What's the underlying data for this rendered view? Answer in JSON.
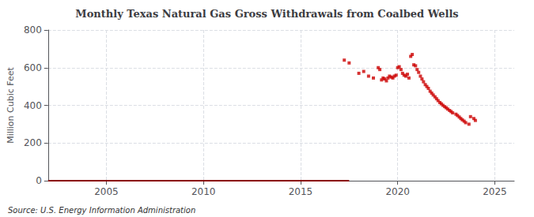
{
  "chart_data": {
    "type": "scatter",
    "title": "Monthly Texas Natural Gas Gross Withdrawals from Coalbed Wells",
    "ylabel": "Million Cubic Feet",
    "annotations": [
      "Source: U.S. Energy Information Administration"
    ],
    "xlim": [
      2002.0,
      2026.0
    ],
    "ylim": [
      0,
      800
    ],
    "xticks": [
      2005,
      2010,
      2015,
      2020,
      2025
    ],
    "yticks": [
      0,
      200,
      400,
      600,
      800
    ],
    "grid": true,
    "series": [
      {
        "type": "line",
        "color": "#8b0000",
        "line_style": "solid",
        "x": [
          2002.0,
          2017.5
        ],
        "values": [
          0,
          0
        ]
      },
      {
        "type": "scatter",
        "color": "#cc0000",
        "marker": "square",
        "x": [
          2017.25,
          2017.5,
          2018.0,
          2018.25,
          2018.5,
          2018.75,
          2019.0,
          2019.08,
          2019.17,
          2019.25,
          2019.33,
          2019.42,
          2019.5,
          2019.58,
          2019.67,
          2019.75,
          2019.83,
          2019.92,
          2020.0,
          2020.08,
          2020.17,
          2020.25,
          2020.33,
          2020.42,
          2020.5,
          2020.58,
          2020.67,
          2020.75,
          2020.83,
          2020.92,
          2021.0,
          2021.08,
          2021.17,
          2021.25,
          2021.33,
          2021.42,
          2021.5,
          2021.58,
          2021.67,
          2021.75,
          2021.83,
          2021.92,
          2022.0,
          2022.08,
          2022.17,
          2022.25,
          2022.33,
          2022.42,
          2022.5,
          2022.58,
          2022.67,
          2022.75,
          2022.83,
          2023.0,
          2023.08,
          2023.17,
          2023.25,
          2023.33,
          2023.42,
          2023.5,
          2023.67,
          2023.75,
          2023.92,
          2024.0
        ],
        "values": [
          640,
          625,
          570,
          580,
          555,
          545,
          600,
          590,
          535,
          545,
          540,
          530,
          545,
          555,
          550,
          545,
          555,
          560,
          600,
          605,
          590,
          570,
          560,
          555,
          565,
          545,
          660,
          670,
          615,
          610,
          590,
          575,
          555,
          540,
          525,
          510,
          500,
          490,
          475,
          465,
          455,
          445,
          435,
          425,
          415,
          408,
          400,
          393,
          387,
          380,
          373,
          367,
          360,
          353,
          346,
          338,
          330,
          323,
          316,
          308,
          300,
          340,
          330,
          320
        ]
      }
    ]
  }
}
